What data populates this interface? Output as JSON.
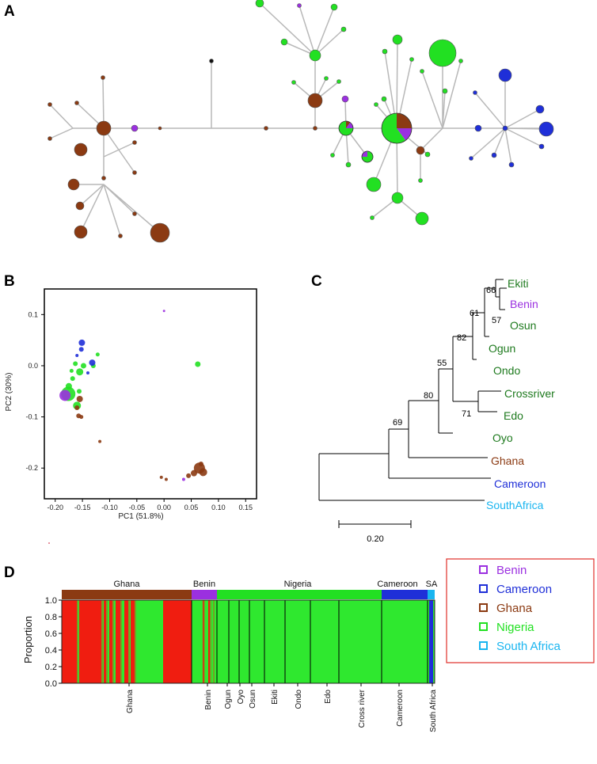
{
  "colors": {
    "benin": "#9b30e0",
    "cameroon": "#1f2fd8",
    "ghana": "#8b3a12",
    "nigeria": "#22e022",
    "south_africa": "#19b5f0",
    "nigeria_text": "#1e7a1e",
    "structure_red": "#f01d10",
    "structure_green": "#2fe82f"
  },
  "panels": {
    "a": "A",
    "b": "B",
    "c": "C",
    "d": "D"
  },
  "haplotype_network": {
    "type": "network",
    "color_groups": [
      "ghana",
      "benin",
      "nigeria",
      "cameroon"
    ]
  },
  "pca": {
    "xlabel": "PC1 (51.8%)",
    "ylabel": "PC2 (30%)",
    "xlim": [
      -0.22,
      0.17
    ],
    "ylim": [
      -0.26,
      0.15
    ],
    "xticks": [
      "-0.20",
      "-0.15",
      "-0.10",
      "-0.05",
      "0.00",
      "0.05",
      "0.10",
      "0.15"
    ],
    "yticks": [
      "0.1",
      "0.0",
      "-0.1",
      "-0.2"
    ],
    "points": [
      {
        "x": -0.151,
        "y": 0.045,
        "r": 4,
        "group": "cameroon"
      },
      {
        "x": -0.152,
        "y": 0.032,
        "r": 3,
        "group": "cameroon"
      },
      {
        "x": -0.16,
        "y": 0.02,
        "r": 2,
        "group": "cameroon"
      },
      {
        "x": -0.163,
        "y": 0.004,
        "r": 3,
        "group": "nigeria"
      },
      {
        "x": -0.17,
        "y": -0.01,
        "r": 2.5,
        "group": "nigeria"
      },
      {
        "x": -0.148,
        "y": 0.0,
        "r": 3.5,
        "group": "nigeria"
      },
      {
        "x": -0.155,
        "y": -0.012,
        "r": 4.5,
        "group": "nigeria"
      },
      {
        "x": -0.14,
        "y": -0.014,
        "r": 2,
        "group": "cameroon"
      },
      {
        "x": -0.13,
        "y": 0.0,
        "r": 3,
        "group": "nigeria"
      },
      {
        "x": -0.132,
        "y": 0.006,
        "r": 4,
        "group": "cameroon"
      },
      {
        "x": -0.122,
        "y": 0.022,
        "r": 2.5,
        "group": "nigeria"
      },
      {
        "x": -0.168,
        "y": -0.025,
        "r": 3,
        "group": "nigeria"
      },
      {
        "x": -0.175,
        "y": -0.04,
        "r": 4,
        "group": "nigeria"
      },
      {
        "x": -0.176,
        "y": -0.055,
        "r": 9,
        "group": "nigeria"
      },
      {
        "x": -0.182,
        "y": -0.058,
        "r": 7,
        "group": "benin"
      },
      {
        "x": -0.156,
        "y": -0.05,
        "r": 3,
        "group": "nigeria"
      },
      {
        "x": -0.155,
        "y": -0.065,
        "r": 4,
        "group": "ghana"
      },
      {
        "x": -0.16,
        "y": -0.078,
        "r": 5,
        "group": "nigeria"
      },
      {
        "x": -0.16,
        "y": -0.082,
        "r": 3,
        "group": "ghana"
      },
      {
        "x": -0.157,
        "y": -0.098,
        "r": 3,
        "group": "ghana"
      },
      {
        "x": -0.152,
        "y": -0.1,
        "r": 2.5,
        "group": "ghana"
      },
      {
        "x": -0.118,
        "y": -0.148,
        "r": 2,
        "group": "ghana"
      },
      {
        "x": 0.0,
        "y": 0.107,
        "r": 1.5,
        "group": "benin"
      },
      {
        "x": 0.062,
        "y": 0.003,
        "r": 3.5,
        "group": "nigeria"
      },
      {
        "x": 0.065,
        "y": -0.2,
        "r": 7,
        "group": "ghana"
      },
      {
        "x": 0.055,
        "y": -0.21,
        "r": 4,
        "group": "ghana"
      },
      {
        "x": 0.072,
        "y": -0.208,
        "r": 5,
        "group": "ghana"
      },
      {
        "x": 0.068,
        "y": -0.192,
        "r": 3,
        "group": "ghana"
      },
      {
        "x": 0.045,
        "y": -0.215,
        "r": 3,
        "group": "ghana"
      },
      {
        "x": 0.036,
        "y": -0.222,
        "r": 2,
        "group": "benin"
      },
      {
        "x": -0.005,
        "y": -0.218,
        "r": 2,
        "group": "ghana"
      },
      {
        "x": 0.004,
        "y": -0.222,
        "r": 2,
        "group": "ghana"
      }
    ]
  },
  "tree": {
    "scale_label": "0.20",
    "leaves": [
      {
        "label": "Ekiti",
        "group": "nigeria"
      },
      {
        "label": "Benin",
        "group": "benin"
      },
      {
        "label": "Osun",
        "group": "nigeria"
      },
      {
        "label": "Ogun",
        "group": "nigeria"
      },
      {
        "label": "Ondo",
        "group": "nigeria"
      },
      {
        "label": "Crossriver",
        "group": "nigeria"
      },
      {
        "label": "Edo",
        "group": "nigeria"
      },
      {
        "label": "Oyo",
        "group": "nigeria"
      },
      {
        "label": "Ghana",
        "group": "ghana"
      },
      {
        "label": "Cameroon",
        "group": "cameroon"
      },
      {
        "label": "SouthAfrica",
        "group": "south_africa"
      }
    ],
    "bootstrap": [
      "66",
      "57",
      "61",
      "82",
      "55",
      "80",
      "71",
      "69"
    ]
  },
  "legend": [
    {
      "label": "Benin",
      "group": "benin"
    },
    {
      "label": "Cameroon",
      "group": "cameroon"
    },
    {
      "label": "Ghana",
      "group": "ghana"
    },
    {
      "label": "Nigeria",
      "group": "nigeria"
    },
    {
      "label": "South Africa",
      "group": "south_africa"
    }
  ],
  "structure": {
    "ylabel": "Proportion",
    "yticks": [
      "1.0",
      "0.8",
      "0.6",
      "0.4",
      "0.2",
      "0.0"
    ],
    "regions": [
      {
        "label": "Ghana",
        "group": "ghana",
        "n": 30
      },
      {
        "label": "Benin",
        "group": "benin",
        "n": 5
      },
      {
        "label": "Nigeria",
        "group": "nigeria",
        "n": 36
      },
      {
        "label": "Cameroon",
        "group": "cameroon",
        "n": 10
      },
      {
        "label": "SA",
        "group": "south_africa",
        "n": 1
      }
    ],
    "sample_labels": [
      "Ghana",
      "Benin",
      "Ogun",
      "Oyo",
      "Osun",
      "Ekiti",
      "Ondo",
      "Edo",
      "Cross river",
      "Cameroon",
      "South Africa"
    ]
  }
}
